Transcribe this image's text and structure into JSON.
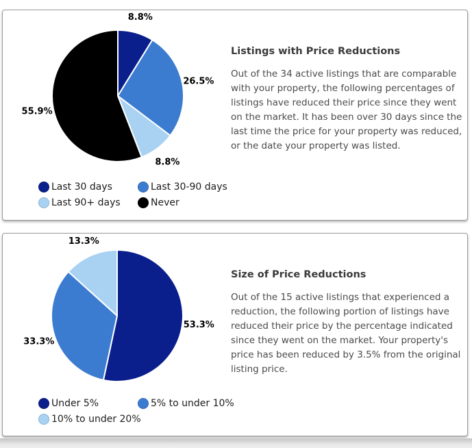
{
  "panels": [
    {
      "title": "Listings with Price Reductions",
      "body": "Out of the 34 active listings that are comparable with your property, the following percentages of listings have reduced their price since they went on the market. It has been over 30 days since the last time the price for your property was reduced, or the date your property was listed."
    },
    {
      "title": "Size of Price Reductions",
      "body": "Out of the 15 active listings that experienced a reduction, the following portion of listings have reduced their price by the percentage indicated since they went on the market. Your property's price has been reduced by 3.5% from the original listing price."
    }
  ],
  "chart_data": [
    {
      "type": "pie",
      "title": "Listings with Price Reductions",
      "start_angle_deg": 0,
      "direction": "clockwise",
      "legend_position": "bottom-left",
      "legend_columns": 2,
      "slices": [
        {
          "label": "Last 30 days",
          "value": 8.8,
          "display": "8.8%",
          "color": "#0A1E8C"
        },
        {
          "label": "Last 30-90 days",
          "value": 26.5,
          "display": "26.5%",
          "color": "#3C7CD0"
        },
        {
          "label": "Last 90+ days",
          "value": 8.8,
          "display": "8.8%",
          "color": "#A9D2F2"
        },
        {
          "label": "Never",
          "value": 55.9,
          "display": "55.9%",
          "color": "#000000"
        }
      ]
    },
    {
      "type": "pie",
      "title": "Size of Price Reductions",
      "start_angle_deg": 0,
      "direction": "clockwise",
      "legend_position": "bottom-left",
      "legend_columns": 2,
      "slices": [
        {
          "label": "Under 5%",
          "value": 53.3,
          "display": "53.3%",
          "color": "#0A1E8C"
        },
        {
          "label": "5% to under 10%",
          "value": 33.3,
          "display": "33.3%",
          "color": "#3C7CD0"
        },
        {
          "label": "10% to under 20%",
          "value": 13.3,
          "display": "13.3%",
          "color": "#A9D2F2"
        }
      ]
    }
  ]
}
